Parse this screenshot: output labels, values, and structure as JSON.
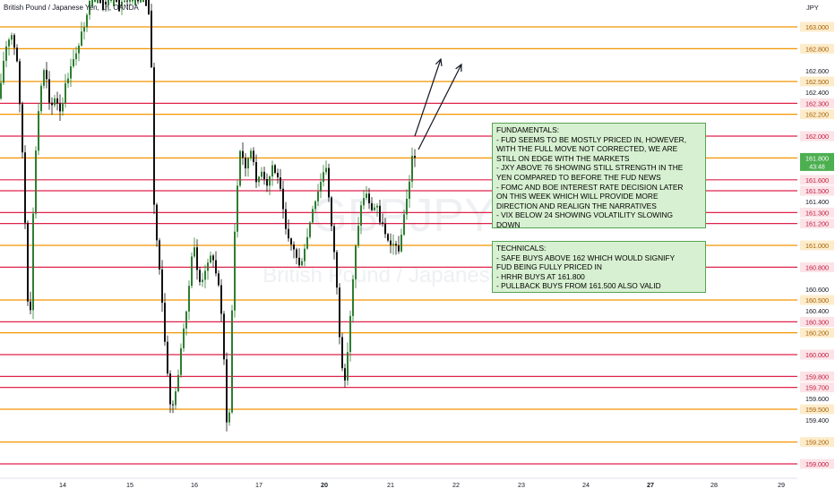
{
  "symbol": {
    "title": "British Pound / Japanese Yen, 1h, OANDA",
    "short": "GBPJPY",
    "interval": "1h",
    "full_name": "British Pound / Japanese Yen",
    "currency": "JPY"
  },
  "price_axis": {
    "labels": [
      "163.000",
      "162.800",
      "162.600",
      "162.500",
      "162.400",
      "162.300",
      "162.200",
      "162.000",
      "161.800",
      "161.600",
      "161.500",
      "161.400",
      "161.300",
      "161.200",
      "161.000",
      "160.800",
      "160.600",
      "160.500",
      "160.400",
      "160.300",
      "160.200",
      "160.000",
      "159.800",
      "159.700",
      "159.600",
      "159.500",
      "159.400",
      "159.200",
      "159.000"
    ],
    "current_price": "161.800",
    "countdown": "43:48"
  },
  "time_axis": {
    "labels": [
      "14",
      "15",
      "16",
      "17",
      "20",
      "21",
      "22",
      "23",
      "24",
      "27",
      "28",
      "29"
    ]
  },
  "levels": [
    {
      "price": "163.000",
      "color": "#f29500"
    },
    {
      "price": "162.800",
      "color": "#f29500"
    },
    {
      "price": "162.500",
      "color": "#f29500"
    },
    {
      "price": "162.300",
      "color": "#e0224a"
    },
    {
      "price": "162.200",
      "color": "#f29500"
    },
    {
      "price": "162.000",
      "color": "#e0224a"
    },
    {
      "price": "161.800",
      "color": "#f29500"
    },
    {
      "price": "161.600",
      "color": "#e0224a"
    },
    {
      "price": "161.500",
      "color": "#e0224a"
    },
    {
      "price": "161.300",
      "color": "#e0224a"
    },
    {
      "price": "161.200",
      "color": "#e0224a"
    },
    {
      "price": "161.000",
      "color": "#f29500"
    },
    {
      "price": "160.800",
      "color": "#e0224a"
    },
    {
      "price": "160.500",
      "color": "#f29500"
    },
    {
      "price": "160.300",
      "color": "#e0224a"
    },
    {
      "price": "160.200",
      "color": "#f29500"
    },
    {
      "price": "160.000",
      "color": "#e0224a"
    },
    {
      "price": "159.800",
      "color": "#e0224a"
    },
    {
      "price": "159.700",
      "color": "#e0224a"
    },
    {
      "price": "159.500",
      "color": "#f29500"
    },
    {
      "price": "159.200",
      "color": "#f29500"
    },
    {
      "price": "159.000",
      "color": "#e0224a"
    }
  ],
  "notes": {
    "fundamentals": [
      "FUNDAMENTALS:",
      "- FUD SEEMS TO BE MOSTLY PRICED IN, HOWEVER,",
      "WITH THE FULL MOVE NOT CORRECTED, WE ARE",
      "STILL ON EDGE WITH THE MARKETS",
      "- JXY ABOVE 76 SHOWING STILL STRENGTH IN THE",
      "YEN COMPARED TO BEFORE THE FUD NEWS",
      "- FOMC AND BOE INTEREST RATE DECISION LATER",
      "ON THIS WEEK WHICH WILL PROVIDE MORE",
      "DIRECTION AND REALIGN THE NARRATIVES",
      "- VIX BELOW 24 SHOWING VOLATILITY SLOWING",
      "DOWN"
    ],
    "technicals": [
      "TECHNICALS:",
      "- SAFE BUYS ABOVE 162 WHICH WOULD SIGNIFY",
      "FUD BEING FULLY PRICED IN",
      "- HRHR BUYS AT 161.800",
      "- PULLBACK BUYS FROM 161.500 ALSO VALID"
    ]
  },
  "colors": {
    "orange_level": "#f29500",
    "red_level": "#e0224a",
    "bullish_candle": "#2e7d32",
    "bearish_candle": "#111111",
    "current_price_tag": "#4caf50",
    "note_bg": "#d7f0d1",
    "note_border": "#58a356"
  }
}
